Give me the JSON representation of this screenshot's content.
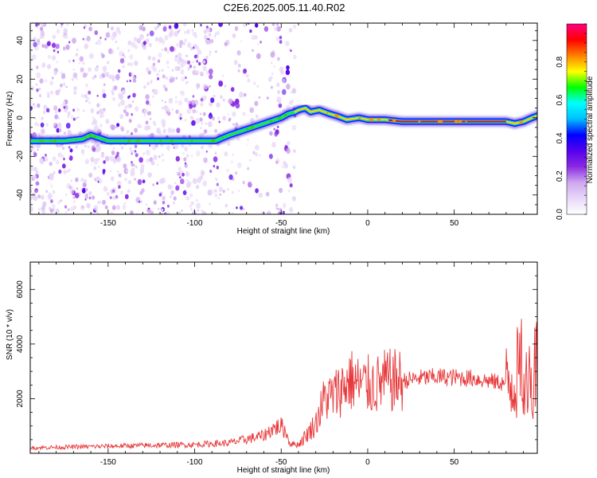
{
  "title": "C2E6.2025.005.11.40.R02",
  "chart_data": [
    {
      "type": "heatmap",
      "xlabel": "Height of straight line (km)",
      "ylabel": "Frequency (Hz)",
      "xlim": [
        -195,
        98
      ],
      "ylim": [
        -50,
        49
      ],
      "xticks": [
        -150,
        -100,
        -50,
        0,
        50
      ],
      "yticks": [
        -40,
        -20,
        0,
        20,
        40
      ],
      "ridge": {
        "x": [
          -195,
          -185,
          -175,
          -165,
          -160,
          -150,
          -130,
          -110,
          -95,
          -88,
          -80,
          -70,
          -60,
          -50,
          -46,
          -42,
          -40,
          -36,
          -33,
          -28,
          -22,
          -18,
          -12,
          -5,
          0,
          10,
          20,
          40,
          60,
          80,
          85,
          90,
          95,
          98
        ],
        "y": [
          -12,
          -12,
          -12,
          -11,
          -9,
          -12,
          -12,
          -12,
          -12,
          -12,
          -9,
          -6,
          -3,
          0,
          2,
          3,
          4,
          5,
          3,
          4,
          2,
          1,
          -1,
          0,
          -1,
          -1,
          -2,
          -2,
          -2,
          -2,
          -3,
          -2,
          0,
          1
        ]
      },
      "colorbar": {
        "label": "Normalized spectral amplitude",
        "range": [
          0,
          1
        ],
        "ticks": [
          0.0,
          0.2,
          0.4,
          0.6,
          0.8
        ],
        "colors": [
          "#ffffff",
          "#e8d8f8",
          "#cfa8f0",
          "#8a2be2",
          "#5500ee",
          "#0000ff",
          "#00bfff",
          "#00ffff",
          "#00ff00",
          "#ffff00",
          "#ff8000",
          "#ff0000",
          "#ff0080"
        ]
      }
    },
    {
      "type": "line",
      "xlabel": "Height of straight line (km)",
      "ylabel": "SNR (10 * v/v)",
      "xlim": [
        -195,
        98
      ],
      "ylim": [
        0,
        7000
      ],
      "xticks": [
        -150,
        -100,
        -50,
        0,
        50
      ],
      "yticks": [
        2000,
        4000,
        6000
      ],
      "color": "#e8383a",
      "x": [
        -195,
        -150,
        -100,
        -80,
        -60,
        -55,
        -50,
        -47,
        -45,
        -40,
        -35,
        -30,
        -25,
        -20,
        -15,
        -10,
        -5,
        0,
        5,
        10,
        15,
        20,
        30,
        40,
        60,
        70,
        80,
        85,
        88,
        90,
        92,
        95,
        98
      ],
      "y": [
        200,
        260,
        320,
        380,
        650,
        900,
        1000,
        750,
        350,
        320,
        700,
        1100,
        2000,
        2100,
        2400,
        2700,
        2500,
        2500,
        2500,
        2650,
        2650,
        2650,
        2750,
        2800,
        2750,
        2650,
        2550,
        2700,
        3200,
        3600,
        3000,
        3000,
        3300
      ]
    }
  ]
}
